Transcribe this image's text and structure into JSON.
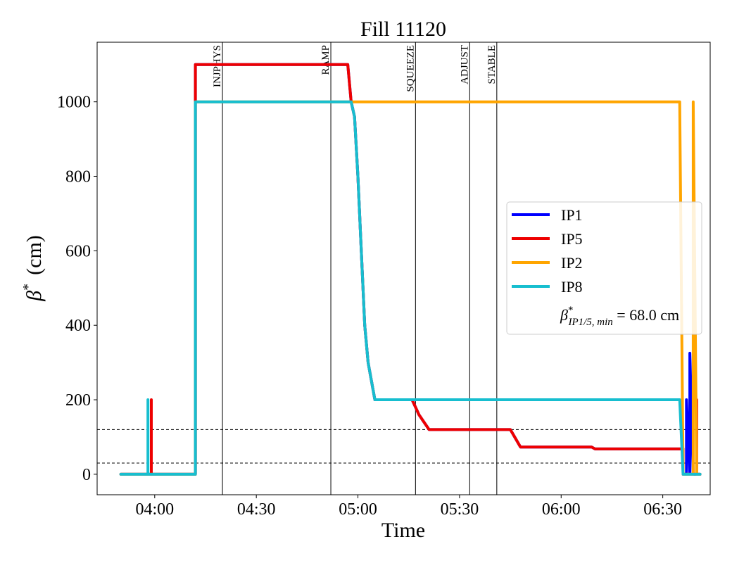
{
  "chart_data": {
    "type": "line",
    "title": "Fill 11120",
    "xlabel": "Time",
    "ylabel_symbol": "β",
    "ylabel_sup": "*",
    "ylabel_unit": "(cm)",
    "xlim": [
      "03:43",
      "06:44"
    ],
    "ylim": [
      -55,
      1160
    ],
    "x_ticks": [
      {
        "t": "04:00",
        "label": "04:00"
      },
      {
        "t": "04:30",
        "label": "04:30"
      },
      {
        "t": "05:00",
        "label": "05:00"
      },
      {
        "t": "05:30",
        "label": "05:30"
      },
      {
        "t": "06:00",
        "label": "06:00"
      },
      {
        "t": "06:30",
        "label": "06:30"
      }
    ],
    "y_ticks": [
      0,
      200,
      400,
      600,
      800,
      1000
    ],
    "reference_lines": [
      120,
      30
    ],
    "phases": [
      {
        "name": "INJPHYS",
        "t": "04:20"
      },
      {
        "name": "RAMP",
        "t": "04:52"
      },
      {
        "name": "SQUEEZE",
        "t": "05:17"
      },
      {
        "name": "ADJUST",
        "t": "05:33"
      },
      {
        "name": "STABLE",
        "t": "05:41"
      }
    ],
    "series": [
      {
        "name": "IP1",
        "color": "#0000ff",
        "points": [
          [
            "03:50",
            0
          ],
          [
            "04:12",
            0
          ],
          [
            "04:12",
            1100
          ],
          [
            "04:57",
            1100
          ],
          [
            "04:58",
            1000
          ],
          [
            "04:59",
            960
          ],
          [
            "05:00",
            800
          ],
          [
            "05:01",
            600
          ],
          [
            "05:02",
            400
          ],
          [
            "05:03",
            300
          ],
          [
            "05:05",
            200
          ],
          [
            "05:16",
            200
          ],
          [
            "05:18",
            160
          ],
          [
            "05:21",
            120
          ],
          [
            "05:45",
            120
          ],
          [
            "05:48",
            73
          ],
          [
            "06:09",
            73
          ],
          [
            "06:10",
            68
          ],
          [
            "06:36",
            68
          ],
          [
            "06:36",
            0
          ],
          [
            "06:37",
            0
          ],
          [
            "06:37",
            200
          ],
          [
            "06:38",
            0
          ],
          [
            "06:38",
            325
          ],
          [
            "06:39",
            0
          ],
          [
            "06:41",
            0
          ]
        ]
      },
      {
        "name": "IP5",
        "color": "#ee0000",
        "points": [
          [
            "03:50",
            0
          ],
          [
            "03:59",
            0
          ],
          [
            "03:59",
            200
          ],
          [
            "03:59",
            0
          ],
          [
            "04:12",
            0
          ],
          [
            "04:12",
            1100
          ],
          [
            "04:57",
            1100
          ],
          [
            "04:58",
            1000
          ],
          [
            "04:59",
            960
          ],
          [
            "05:00",
            800
          ],
          [
            "05:01",
            600
          ],
          [
            "05:02",
            400
          ],
          [
            "05:03",
            300
          ],
          [
            "05:05",
            200
          ],
          [
            "05:16",
            200
          ],
          [
            "05:18",
            160
          ],
          [
            "05:21",
            120
          ],
          [
            "05:45",
            120
          ],
          [
            "05:48",
            73
          ],
          [
            "06:09",
            73
          ],
          [
            "06:10",
            68
          ],
          [
            "06:36",
            68
          ],
          [
            "06:36",
            0
          ],
          [
            "06:40",
            0
          ],
          [
            "06:40",
            200
          ],
          [
            "06:40",
            0
          ],
          [
            "06:41",
            0
          ]
        ]
      },
      {
        "name": "IP2",
        "color": "#ffa500",
        "points": [
          [
            "03:50",
            0
          ],
          [
            "04:12",
            0
          ],
          [
            "04:12",
            1000
          ],
          [
            "04:58",
            1000
          ],
          [
            "06:35",
            1000
          ],
          [
            "06:36",
            0
          ],
          [
            "06:39",
            0
          ],
          [
            "06:39",
            1000
          ],
          [
            "06:40",
            0
          ],
          [
            "06:41",
            0
          ]
        ]
      },
      {
        "name": "IP8",
        "color": "#17becf",
        "points": [
          [
            "03:50",
            0
          ],
          [
            "03:58",
            0
          ],
          [
            "03:58",
            200
          ],
          [
            "03:58",
            0
          ],
          [
            "04:12",
            0
          ],
          [
            "04:12",
            1000
          ],
          [
            "04:58",
            1000
          ],
          [
            "04:59",
            960
          ],
          [
            "05:00",
            800
          ],
          [
            "05:01",
            600
          ],
          [
            "05:02",
            400
          ],
          [
            "05:03",
            300
          ],
          [
            "05:05",
            200
          ],
          [
            "06:35",
            200
          ],
          [
            "06:36",
            0
          ],
          [
            "06:41",
            0
          ]
        ]
      }
    ],
    "legend": {
      "placement": "center-right",
      "entries": [
        "IP1",
        "IP5",
        "IP2",
        "IP8"
      ],
      "annotation": {
        "symbol": "β",
        "sup": "*",
        "sub": "IP1/5, min",
        "equals": " = ",
        "value": "68.0 cm"
      }
    }
  }
}
